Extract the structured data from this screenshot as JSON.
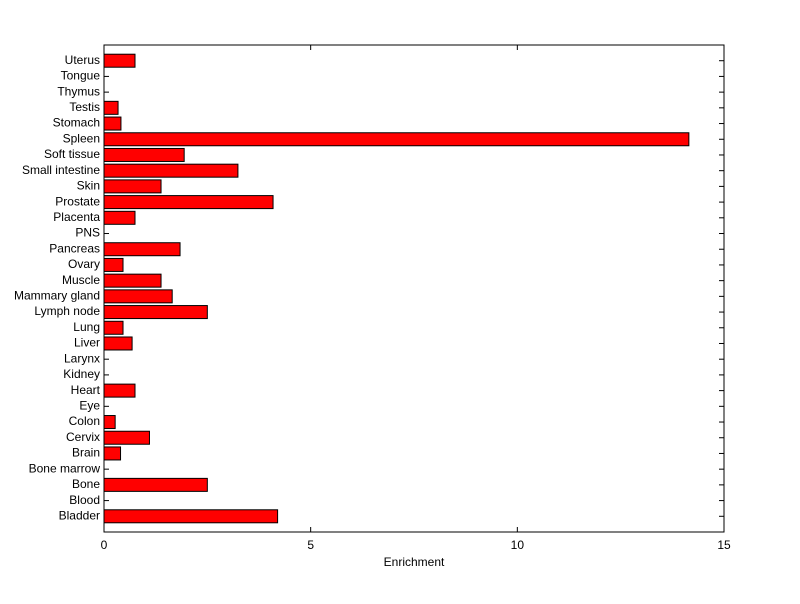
{
  "chart_data": {
    "type": "barh",
    "xlabel": "Enrichment",
    "categories": [
      "Bladder",
      "Blood",
      "Bone",
      "Bone marrow",
      "Brain",
      "Cervix",
      "Colon",
      "Eye",
      "Heart",
      "Kidney",
      "Larynx",
      "Liver",
      "Lung",
      "Lymph node",
      "Mammary gland",
      "Muscle",
      "Ovary",
      "Pancreas",
      "PNS",
      "Placenta",
      "Prostate",
      "Skin",
      "Small intestine",
      "Soft tissue",
      "Spleen",
      "Stomach",
      "Testis",
      "Thymus",
      "Tongue",
      "Uterus"
    ],
    "values": [
      4.2,
      0,
      2.5,
      0,
      0.4,
      1.1,
      0.27,
      0,
      0.75,
      0,
      0,
      0.68,
      0.46,
      2.5,
      1.65,
      1.38,
      0.46,
      1.84,
      0,
      0.75,
      4.09,
      1.38,
      3.24,
      1.94,
      14.15,
      0.41,
      0.34,
      0,
      0,
      0.75
    ],
    "color": "#ff0000",
    "xlim": [
      0,
      15
    ],
    "xticks": [
      0,
      5,
      10,
      15
    ],
    "grid": false
  }
}
